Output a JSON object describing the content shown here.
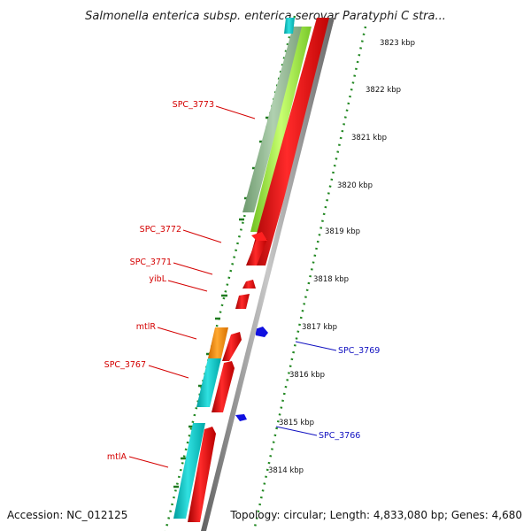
{
  "title": "Salmonella enterica subsp. enterica serovar Paratyphi C stra...",
  "footer": {
    "accession": "Accession: NC_012125",
    "summary": "Topology: circular; Length: 4,833,080 bp; Genes: 4,680"
  },
  "scale_labels": [
    "3823 kbp",
    "3822 kbp",
    "3821 kbp",
    "3820 kbp",
    "3819 kbp",
    "3818 kbp",
    "3817 kbp",
    "3816 kbp",
    "3815 kbp",
    "3814 kbp"
  ],
  "gene_labels": [
    {
      "text": "SPC_3773",
      "color": "#d40000"
    },
    {
      "text": "SPC_3772",
      "color": "#d40000"
    },
    {
      "text": "SPC_3771",
      "color": "#d40000"
    },
    {
      "text": "yibL",
      "color": "#d40000"
    },
    {
      "text": "mtlR",
      "color": "#d40000"
    },
    {
      "text": "SPC_3767",
      "color": "#d40000"
    },
    {
      "text": "mtlA",
      "color": "#d40000"
    },
    {
      "text": "SPC_3769",
      "color": "#1010c0"
    },
    {
      "text": "SPC_3766",
      "color": "#1010c0"
    }
  ],
  "colors": {
    "forward_cds": "#ff0000",
    "reverse_cds": "#1010e0",
    "cog_cyan": "#00c8c8",
    "cog_orange": "#ff9000",
    "cog_lime": "#a0f040",
    "cog_sage": "#90b890",
    "backbone": "#909090",
    "gc_ticks": "#228822"
  }
}
